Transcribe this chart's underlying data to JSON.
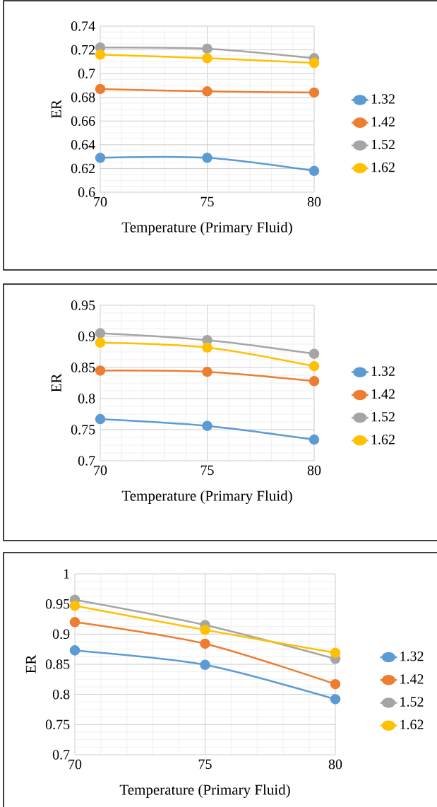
{
  "chart_data": [
    {
      "type": "line",
      "xlabel": "Temperature (Primary Fluid)",
      "ylabel": "ER",
      "x": [
        70,
        75,
        80
      ],
      "xlim": [
        70,
        80
      ],
      "xticks": [
        70,
        75,
        80
      ],
      "ylim": [
        0.6,
        0.74
      ],
      "yticks": [
        0.6,
        0.62,
        0.64,
        0.66,
        0.68,
        0.7,
        0.72,
        0.74
      ],
      "grid": true,
      "legend": "right",
      "marker": "circle",
      "series": [
        {
          "name": "1.32",
          "color": "#5b9bd5",
          "values": [
            0.629,
            0.629,
            0.618
          ]
        },
        {
          "name": "1.42",
          "color": "#ed7d31",
          "values": [
            0.687,
            0.685,
            0.684
          ]
        },
        {
          "name": "1.52",
          "color": "#a5a5a5",
          "values": [
            0.722,
            0.721,
            0.713
          ]
        },
        {
          "name": "1.62",
          "color": "#ffc000",
          "values": [
            0.716,
            0.713,
            0.709
          ]
        }
      ]
    },
    {
      "type": "line",
      "xlabel": "Temperature (Primary Fluid)",
      "ylabel": "ER",
      "x": [
        70,
        75,
        80
      ],
      "xlim": [
        70,
        80
      ],
      "xticks": [
        70,
        75,
        80
      ],
      "ylim": [
        0.7,
        0.95
      ],
      "yticks": [
        0.7,
        0.75,
        0.8,
        0.85,
        0.9,
        0.95
      ],
      "grid": true,
      "legend": "right",
      "marker": "circle",
      "series": [
        {
          "name": "1.32",
          "color": "#5b9bd5",
          "values": [
            0.767,
            0.756,
            0.734
          ]
        },
        {
          "name": "1.42",
          "color": "#ed7d31",
          "values": [
            0.845,
            0.843,
            0.828
          ]
        },
        {
          "name": "1.52",
          "color": "#a5a5a5",
          "values": [
            0.905,
            0.894,
            0.872
          ]
        },
        {
          "name": "1.62",
          "color": "#ffc000",
          "values": [
            0.89,
            0.882,
            0.852
          ]
        }
      ]
    },
    {
      "type": "line",
      "xlabel": "Temperature (Primary Fluid)",
      "ylabel": "ER",
      "x": [
        70,
        75,
        80
      ],
      "xlim": [
        70,
        80
      ],
      "xticks": [
        70,
        75,
        80
      ],
      "ylim": [
        0.7,
        1
      ],
      "yticks": [
        0.7,
        0.75,
        0.8,
        0.85,
        0.9,
        0.95,
        1
      ],
      "grid": true,
      "legend": "right",
      "marker": "circle",
      "series": [
        {
          "name": "1.32",
          "color": "#5b9bd5",
          "values": [
            0.873,
            0.849,
            0.792
          ]
        },
        {
          "name": "1.42",
          "color": "#ed7d31",
          "values": [
            0.92,
            0.884,
            0.817
          ]
        },
        {
          "name": "1.52",
          "color": "#a5a5a5",
          "values": [
            0.957,
            0.915,
            0.859
          ]
        },
        {
          "name": "1.62",
          "color": "#ffc000",
          "values": [
            0.947,
            0.907,
            0.869
          ]
        }
      ]
    }
  ]
}
